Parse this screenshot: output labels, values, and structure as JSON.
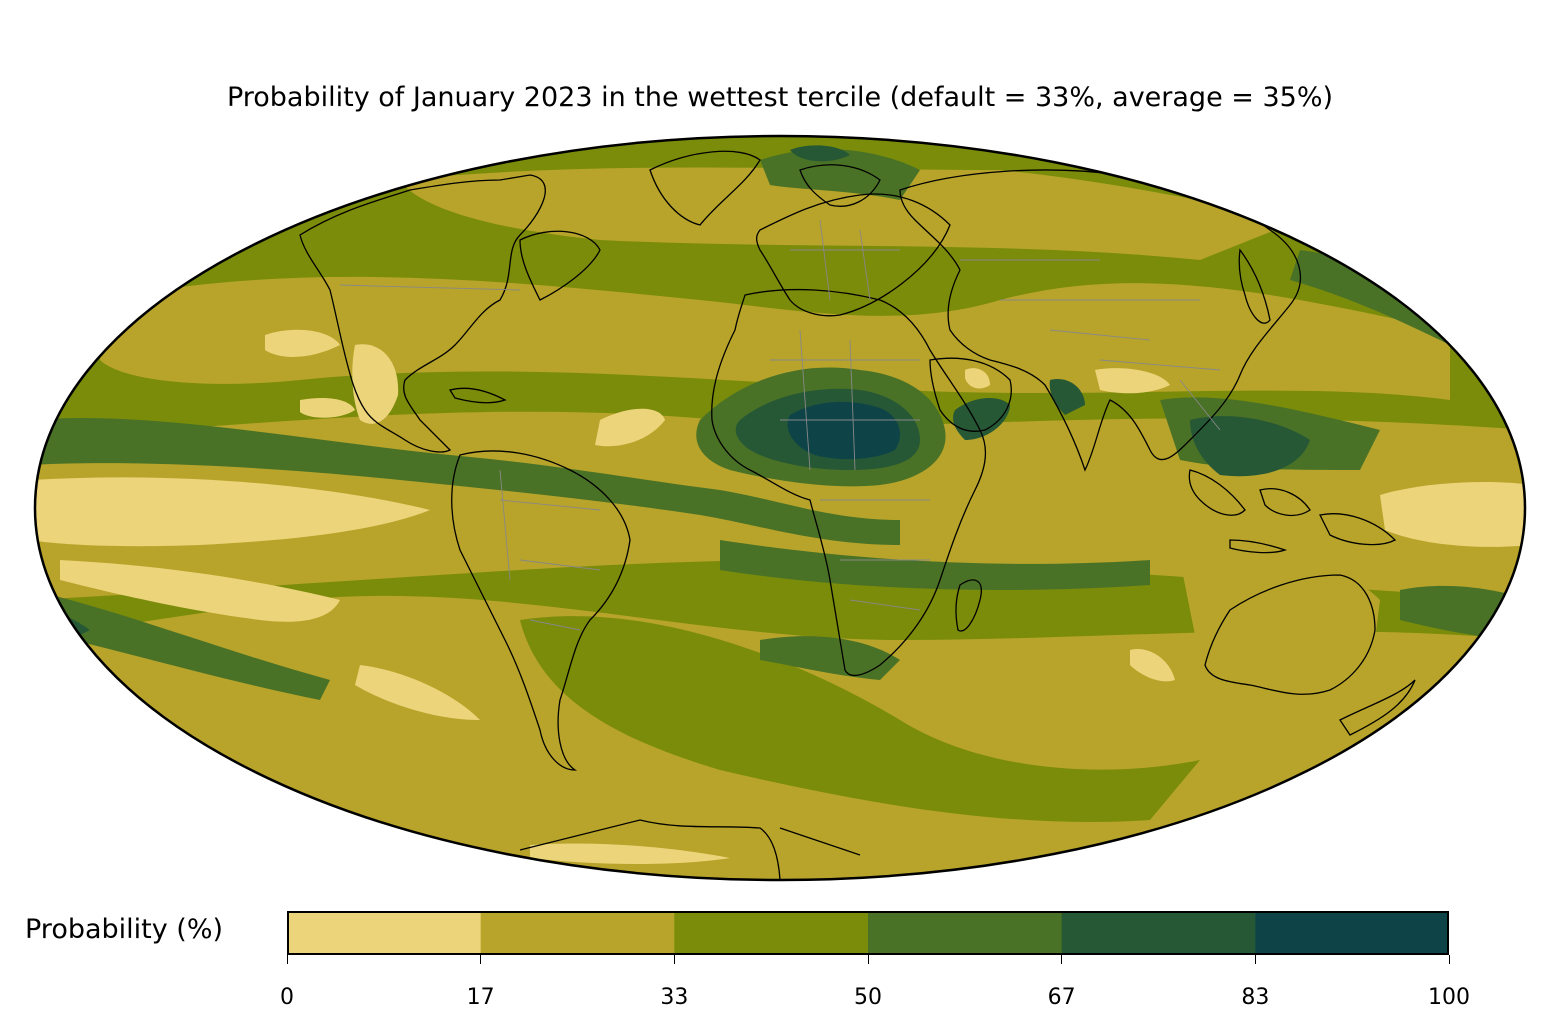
{
  "title": "Probability of January 2023 in the wettest tercile (default = 33%, average = 35%)",
  "colorbar": {
    "label": "Probability (%)",
    "ticks": [
      "0",
      "17",
      "33",
      "50",
      "67",
      "83",
      "100"
    ],
    "colors": [
      "#ecd47a",
      "#b8a42a",
      "#7a8c0a",
      "#4a7226",
      "#265836",
      "#0e4448"
    ]
  },
  "map": {
    "projection": "Mollweide",
    "ocean_background": "#b8a42a",
    "coastline_color": "#000000",
    "border_color": "#888888"
  }
}
